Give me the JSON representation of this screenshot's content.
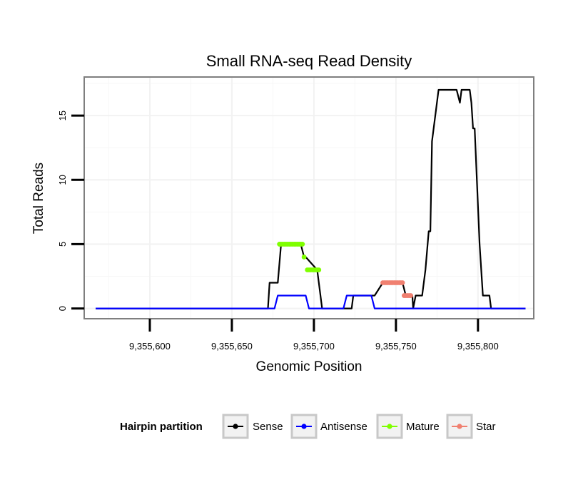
{
  "chart_data": {
    "type": "line",
    "title": "Small RNA-seq Read Density",
    "xlabel": "Genomic Position",
    "ylabel": "Total Reads",
    "xlim": [
      9355560,
      9355834
    ],
    "ylim": [
      -0.8,
      18
    ],
    "x_ticks": [
      9355600,
      9355650,
      9355700,
      9355750,
      9355800
    ],
    "x_tick_labels": [
      "9,355,600",
      "9,355,650",
      "9,355,700",
      "9,355,750",
      "9,355,800"
    ],
    "y_ticks": [
      0,
      5,
      10,
      15
    ],
    "y_tick_labels": [
      "0",
      "5",
      "10",
      "15"
    ],
    "grid": true,
    "legend": {
      "title": "Hairpin partition",
      "placement": "bottom",
      "entries": [
        {
          "name": "Sense",
          "color": "#000000"
        },
        {
          "name": "Antisense",
          "color": "#0000ff"
        },
        {
          "name": "Mature",
          "color": "#7fff00"
        },
        {
          "name": "Star",
          "color": "#f08070"
        }
      ]
    },
    "series": [
      {
        "name": "Sense",
        "color": "#000000",
        "style": "line",
        "x": [
          9355567,
          9355672,
          9355673,
          9355677,
          9355678,
          9355680,
          9355681,
          9355692,
          9355694,
          9355695,
          9355702,
          9355704,
          9355705,
          9355721,
          9355723,
          9355724,
          9355727,
          9355737,
          9355742,
          9355745,
          9355749,
          9355750,
          9355754,
          9355756,
          9355758,
          9355759,
          9355760,
          9355760.5,
          9355762,
          9355766,
          9355768,
          9355770,
          9355771,
          9355772,
          9355774,
          9355776,
          9355778,
          9355787,
          9355789,
          9355790,
          9355795,
          9355796,
          9355797,
          9355798,
          9355799,
          9355801,
          9355803,
          9355807,
          9355808,
          9355829
        ],
        "values": [
          0,
          0,
          2,
          2,
          2,
          5,
          5,
          5,
          4,
          4,
          3,
          1,
          0,
          0,
          0,
          1,
          1,
          1,
          2,
          2,
          2,
          2,
          2,
          1,
          1,
          1,
          1,
          0,
          1,
          1,
          3,
          6,
          6,
          13,
          15,
          17,
          17,
          17,
          16,
          17,
          17,
          16,
          14,
          14,
          11,
          5,
          1,
          1,
          0,
          0
        ]
      },
      {
        "name": "Antisense",
        "color": "#0000ff",
        "style": "line",
        "x": [
          9355567,
          9355676,
          9355678,
          9355695,
          9355697,
          9355718,
          9355720,
          9355735,
          9355737,
          9355829
        ],
        "values": [
          0,
          0,
          1,
          1,
          0,
          0,
          1,
          1,
          0,
          0
        ]
      },
      {
        "name": "Mature",
        "color": "#7fff00",
        "style": "points",
        "x": [
          9355679,
          9355680,
          9355681,
          9355682,
          9355683,
          9355684,
          9355685,
          9355686,
          9355687,
          9355688,
          9355689,
          9355690,
          9355691,
          9355692,
          9355693,
          9355694,
          9355696,
          9355697,
          9355698,
          9355699,
          9355700,
          9355701,
          9355702,
          9355703
        ],
        "values": [
          5,
          5,
          5,
          5,
          5,
          5,
          5,
          5,
          5,
          5,
          5,
          5,
          5,
          5,
          5,
          4,
          3,
          3,
          3,
          3,
          3,
          3,
          3,
          3
        ]
      },
      {
        "name": "Star",
        "color": "#f08070",
        "style": "points",
        "x": [
          9355742,
          9355743,
          9355744,
          9355745,
          9355746,
          9355747,
          9355748,
          9355749,
          9355750,
          9355751,
          9355752,
          9355753,
          9355754,
          9355755,
          9355756,
          9355757,
          9355758,
          9355759
        ],
        "values": [
          2,
          2,
          2,
          2,
          2,
          2,
          2,
          2,
          2,
          2,
          2,
          2,
          2,
          1,
          1,
          1,
          1,
          1
        ]
      }
    ]
  }
}
